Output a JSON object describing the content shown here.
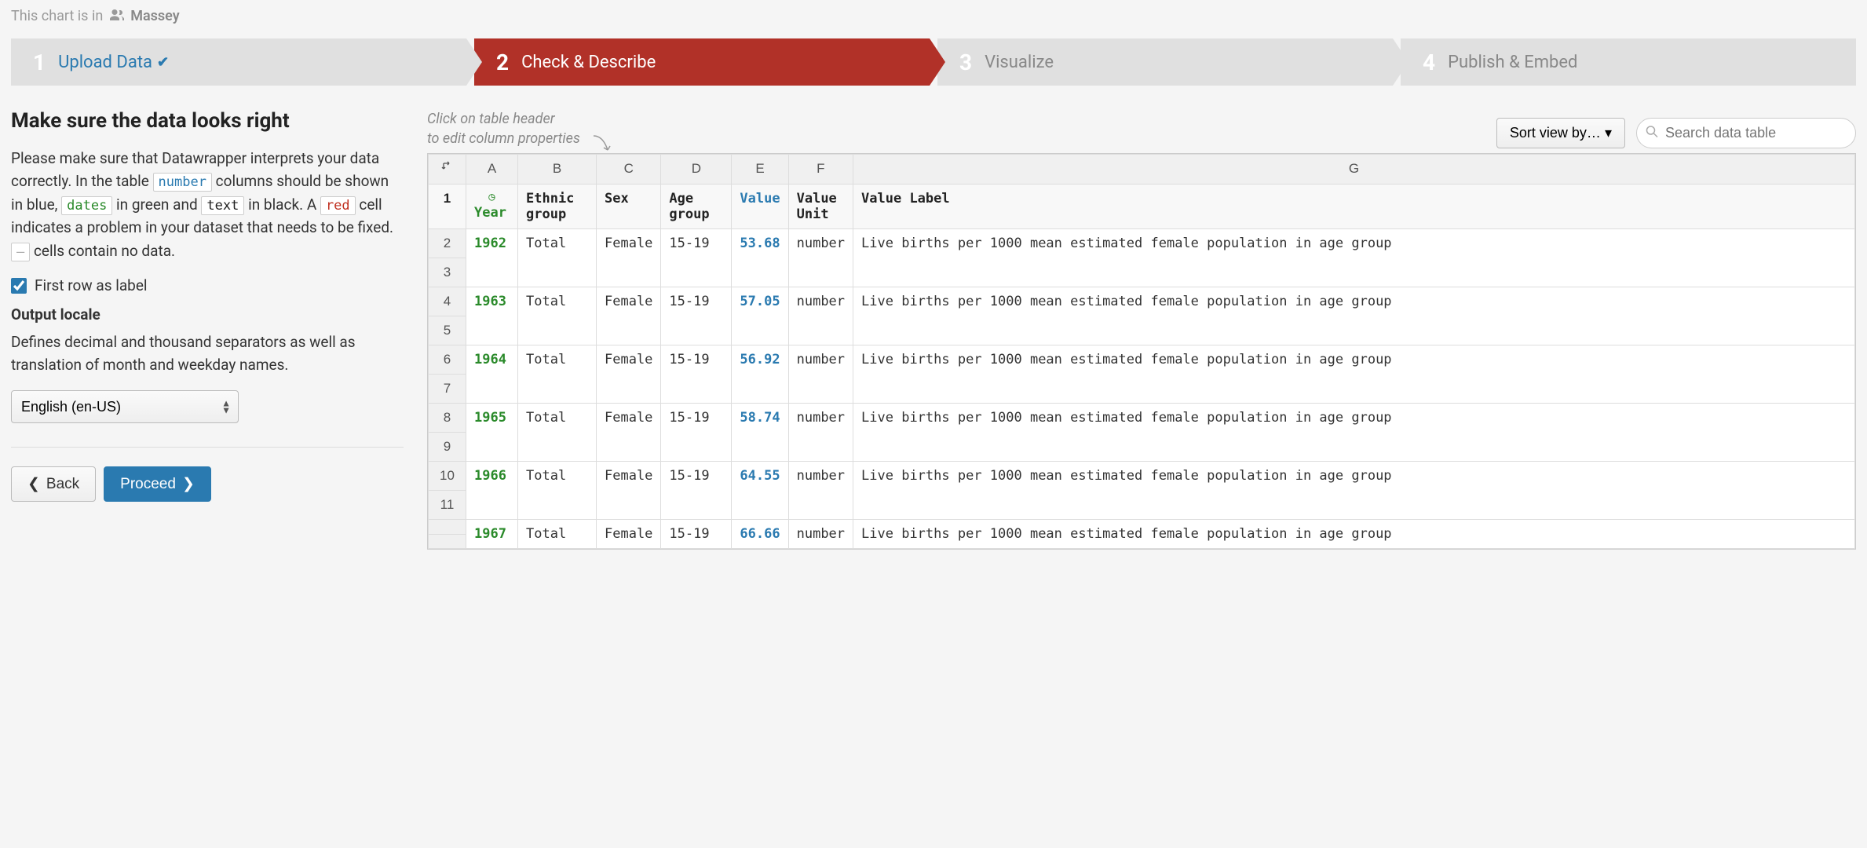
{
  "breadcrumb": {
    "prefix": "This chart is in",
    "team": "Massey"
  },
  "steps": [
    {
      "num": "1",
      "label": "Upload Data",
      "done": true
    },
    {
      "num": "2",
      "label": "Check & Describe",
      "active": true
    },
    {
      "num": "3",
      "label": "Visualize"
    },
    {
      "num": "4",
      "label": "Publish & Embed"
    }
  ],
  "left": {
    "heading": "Make sure the data looks right",
    "instructions_pre": "Please make sure that Datawrapper interprets your data correctly. In the table ",
    "chip_number": "number",
    "instr_mid1": " columns should be shown in blue, ",
    "chip_dates": "dates",
    "instr_mid2": " in green and ",
    "chip_text": "text",
    "instr_mid3": " in black. A ",
    "chip_red": "red",
    "instr_mid4": " cell indicates a problem in your dataset that needs to be fixed. ",
    "chip_dash": "—",
    "instr_end": " cells contain no data.",
    "first_row_label": "First row as label",
    "output_locale": "Output locale",
    "locale_help": "Defines decimal and thousand separators as well as translation of month and weekday names.",
    "locale_value": "English (en-US)",
    "back": "Back",
    "proceed": "Proceed"
  },
  "table": {
    "hint_l1": "Click on table header",
    "hint_l2": "to edit column properties",
    "sort_label": "Sort view by…",
    "search_placeholder": "Search data table",
    "col_letters": [
      "A",
      "B",
      "C",
      "D",
      "E",
      "F",
      "G"
    ],
    "headers": {
      "A": "Year",
      "B": "Ethnic group",
      "C": "Sex",
      "D": "Age group",
      "E": "Value",
      "F": "Value Unit",
      "G": "Value Label"
    },
    "rows": [
      {
        "year": "1962",
        "ethnic": "Total",
        "sex": "Female",
        "age": "15-19",
        "value": "53.68",
        "unit": "number",
        "label": "Live births per 1000 mean estimated female population in age group"
      },
      {
        "year": "1963",
        "ethnic": "Total",
        "sex": "Female",
        "age": "15-19",
        "value": "57.05",
        "unit": "number",
        "label": "Live births per 1000 mean estimated female population in age group"
      },
      {
        "year": "1964",
        "ethnic": "Total",
        "sex": "Female",
        "age": "15-19",
        "value": "56.92",
        "unit": "number",
        "label": "Live births per 1000 mean estimated female population in age group"
      },
      {
        "year": "1965",
        "ethnic": "Total",
        "sex": "Female",
        "age": "15-19",
        "value": "58.74",
        "unit": "number",
        "label": "Live births per 1000 mean estimated female population in age group"
      },
      {
        "year": "1966",
        "ethnic": "Total",
        "sex": "Female",
        "age": "15-19",
        "value": "64.55",
        "unit": "number",
        "label": "Live births per 1000 mean estimated female population in age group"
      },
      {
        "year": "1967",
        "ethnic": "Total",
        "sex": "Female",
        "age": "15-19",
        "value": "66.66",
        "unit": "number",
        "label": "Live births per 1000 mean estimated female population in age group"
      }
    ],
    "row_nums": [
      "1",
      "2",
      "3",
      "4",
      "5",
      "6",
      "7",
      "8",
      "9",
      "10",
      "11"
    ]
  },
  "colors": {
    "accent_red": "#b13128",
    "accent_blue": "#2a7ab0",
    "accent_green": "#2a8a2a",
    "bg": "#f5f5f5"
  }
}
